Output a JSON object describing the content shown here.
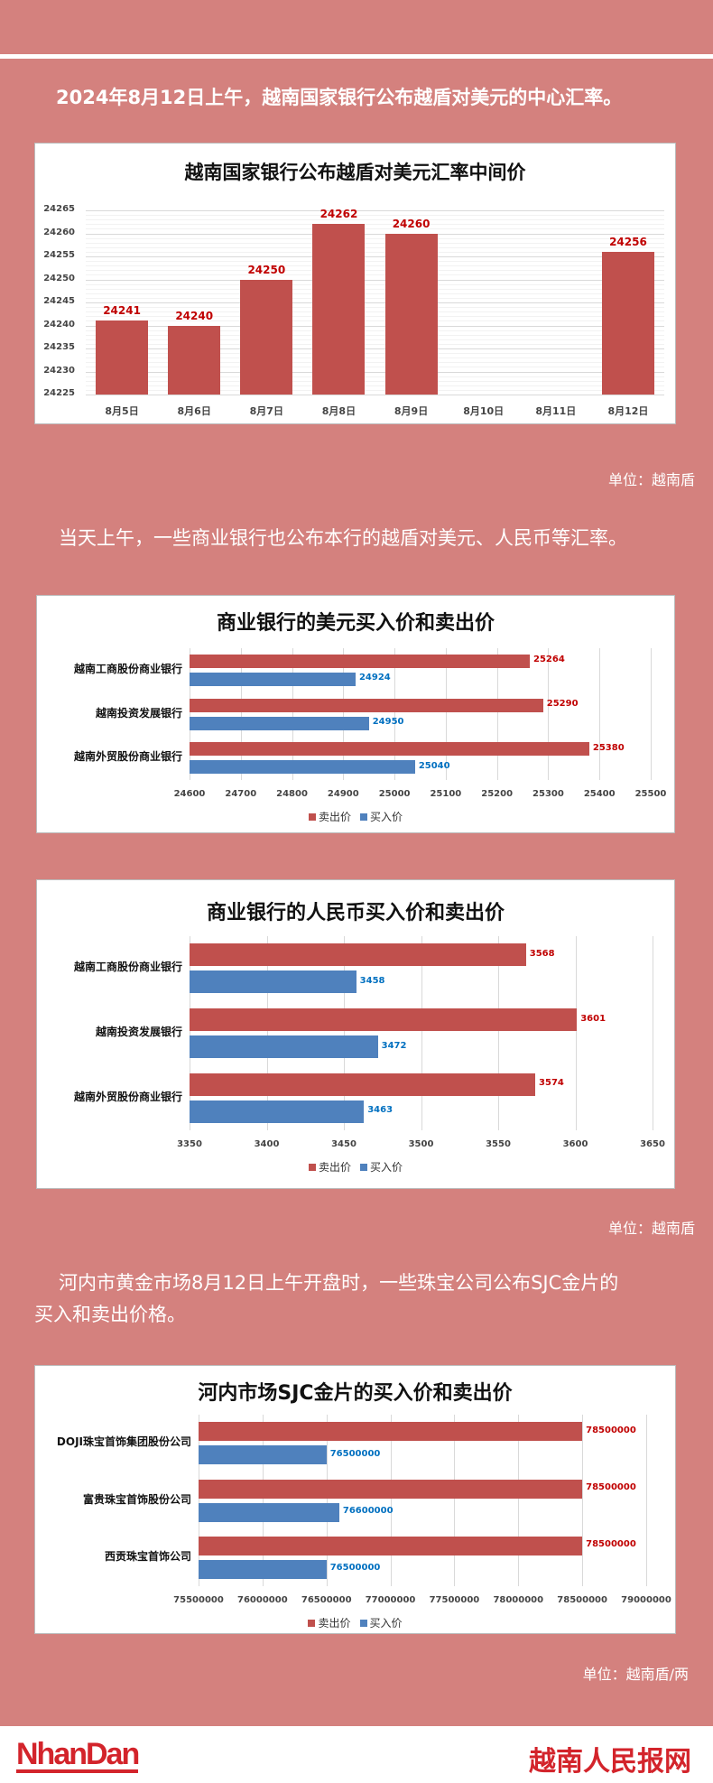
{
  "intro1": "2024年8月12日上午，越南国家银行公布越盾对美元的中心汇率。",
  "intro2": "当天上午，一些商业银行也公布本行的越盾对美元、人民币等汇率。",
  "intro3_line1": "河内市黄金市场8月12日上午开盘时，一些珠宝公司公布SJC金片的",
  "intro3_line2": "买入和卖出价格。",
  "unit1": "单位：越南盾",
  "unit2": "单位：越南盾",
  "unit3": "单位：越南盾/两",
  "colors": {
    "background": "#d4817e",
    "sell": "#c0504d",
    "buy": "#4f81bd",
    "sell_label": "#c00000",
    "buy_label": "#0070c0",
    "mid_label": "#c00000"
  },
  "footer": {
    "logo_left": "NhanDan",
    "logo_right": "越南人民报网"
  },
  "chart_data": [
    {
      "type": "bar",
      "title": "越南国家银行公布越盾对美元汇率中间价",
      "categories": [
        "8月5日",
        "8月6日",
        "8月7日",
        "8月8日",
        "8月9日",
        "8月10日",
        "8月11日",
        "8月12日"
      ],
      "values": [
        24241,
        24240,
        24250,
        24262,
        24260,
        null,
        null,
        24256
      ],
      "data_labels": [
        "24241",
        "24240",
        "24250",
        "24262",
        "24260",
        "",
        "",
        "24256"
      ],
      "ylim": [
        24225,
        24265
      ],
      "yticks": [
        "24265",
        "24260",
        "24255",
        "24250",
        "24245",
        "24240",
        "24235",
        "24230",
        "24225"
      ],
      "grid": true
    },
    {
      "type": "bar",
      "orientation": "horizontal",
      "title": "商业银行的美元买入价和卖出价",
      "categories": [
        "越南工商股份商业银行",
        "越南投资发展银行",
        "越南外贸股份商业银行"
      ],
      "series": [
        {
          "name": "卖出价",
          "values": [
            25264,
            25290,
            25380
          ],
          "labels": [
            "25264",
            "25290",
            "25380"
          ]
        },
        {
          "name": "买入价",
          "values": [
            24924,
            24950,
            25040
          ],
          "labels": [
            "24924",
            "24950",
            "25040"
          ]
        }
      ],
      "xlim": [
        24600,
        25500
      ],
      "xticks": [
        "24600",
        "24700",
        "24800",
        "24900",
        "25000",
        "25100",
        "25200",
        "25300",
        "25400",
        "25500"
      ],
      "legend": "bottom",
      "grid": true
    },
    {
      "type": "bar",
      "orientation": "horizontal",
      "title": "商业银行的人民币买入价和卖出价",
      "categories": [
        "越南工商股份商业银行",
        "越南投资发展银行",
        "越南外贸股份商业银行"
      ],
      "series": [
        {
          "name": "卖出价",
          "values": [
            3568,
            3601,
            3574
          ],
          "labels": [
            "3568",
            "3601",
            "3574"
          ]
        },
        {
          "name": "买入价",
          "values": [
            3458,
            3472,
            3463
          ],
          "labels": [
            "3458",
            "3472",
            "3463"
          ]
        }
      ],
      "xlim": [
        3350,
        3650
      ],
      "xticks": [
        "3350",
        "3400",
        "3450",
        "3500",
        "3550",
        "3600",
        "3650"
      ],
      "legend": "bottom",
      "grid": true
    },
    {
      "type": "bar",
      "orientation": "horizontal",
      "title": "河内市场SJC金片的买入价和卖出价",
      "categories": [
        "DOJI珠宝首饰集团股份公司",
        "富贵珠宝首饰股份公司",
        "西贡珠宝首饰公司"
      ],
      "series": [
        {
          "name": "卖出价",
          "values": [
            78500000,
            78500000,
            78500000
          ],
          "labels": [
            "78500000",
            "78500000",
            "78500000"
          ]
        },
        {
          "name": "买入价",
          "values": [
            76500000,
            76600000,
            76500000
          ],
          "labels": [
            "76500000",
            "76600000",
            "76500000"
          ]
        }
      ],
      "xlim": [
        75500000,
        79000000
      ],
      "xticks": [
        "75500000",
        "76000000",
        "76500000",
        "77000000",
        "77500000",
        "78000000",
        "78500000",
        "79000000"
      ],
      "legend": "bottom",
      "grid": true
    }
  ]
}
